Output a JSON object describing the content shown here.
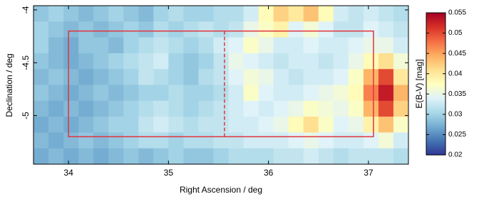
{
  "chart_data": {
    "type": "heatmap",
    "xlabel": "Right Ascension / deg",
    "ylabel": "Declination / deg",
    "colorbar_label": "E(B-V) [mag]",
    "xlim": [
      33.65,
      37.4
    ],
    "ylim": [
      -5.46,
      -3.96
    ],
    "xticks": [
      34,
      35,
      36,
      37
    ],
    "yticks": [
      -4,
      -4.5,
      -5
    ],
    "clim": [
      0.02,
      0.055
    ],
    "cticks": [
      0.02,
      0.025,
      0.03,
      0.035,
      0.04,
      0.045,
      0.05,
      0.055
    ],
    "colormap": [
      "#313695",
      "#4575b4",
      "#74add1",
      "#abd9e9",
      "#e0f3f8",
      "#ffffbf",
      "#fee090",
      "#fdae61",
      "#f46d43",
      "#d73027",
      "#a50026"
    ],
    "x": [
      33.725,
      33.875,
      34.025,
      34.175,
      34.325,
      34.475,
      34.625,
      34.775,
      34.925,
      35.075,
      35.225,
      35.375,
      35.525,
      35.675,
      35.825,
      35.975,
      36.125,
      36.275,
      36.425,
      36.575,
      36.725,
      36.875,
      37.025,
      37.175,
      37.325
    ],
    "y": [
      -4.035,
      -4.185,
      -4.335,
      -4.485,
      -4.635,
      -4.785,
      -4.935,
      -5.085,
      -5.235,
      -5.385
    ],
    "z": [
      [
        0.029,
        0.03,
        0.029,
        0.028,
        0.029,
        0.03,
        0.029,
        0.028,
        0.03,
        0.031,
        0.03,
        0.03,
        0.031,
        0.031,
        0.033,
        0.038,
        0.042,
        0.04,
        0.043,
        0.038,
        0.033,
        0.032,
        0.033,
        0.032,
        0.031
      ],
      [
        0.03,
        0.029,
        0.028,
        0.029,
        0.028,
        0.029,
        0.03,
        0.029,
        0.031,
        0.03,
        0.031,
        0.032,
        0.031,
        0.032,
        0.035,
        0.037,
        0.039,
        0.034,
        0.036,
        0.034,
        0.032,
        0.032,
        0.034,
        0.033,
        0.032
      ],
      [
        0.03,
        0.028,
        0.027,
        0.029,
        0.029,
        0.028,
        0.03,
        0.031,
        0.032,
        0.031,
        0.03,
        0.031,
        0.033,
        0.034,
        0.037,
        0.035,
        0.033,
        0.033,
        0.034,
        0.033,
        0.033,
        0.034,
        0.035,
        0.035,
        0.033
      ],
      [
        0.029,
        0.028,
        0.027,
        0.028,
        0.029,
        0.03,
        0.031,
        0.032,
        0.033,
        0.03,
        0.029,
        0.03,
        0.032,
        0.035,
        0.034,
        0.033,
        0.032,
        0.033,
        0.033,
        0.032,
        0.033,
        0.035,
        0.038,
        0.041,
        0.036
      ],
      [
        0.028,
        0.029,
        0.028,
        0.027,
        0.028,
        0.029,
        0.03,
        0.032,
        0.031,
        0.03,
        0.029,
        0.031,
        0.032,
        0.034,
        0.036,
        0.035,
        0.033,
        0.032,
        0.033,
        0.033,
        0.034,
        0.037,
        0.044,
        0.05,
        0.04
      ],
      [
        0.029,
        0.028,
        0.027,
        0.028,
        0.029,
        0.028,
        0.029,
        0.03,
        0.03,
        0.031,
        0.03,
        0.03,
        0.031,
        0.033,
        0.037,
        0.034,
        0.033,
        0.033,
        0.034,
        0.035,
        0.036,
        0.038,
        0.047,
        0.053,
        0.044
      ],
      [
        0.028,
        0.027,
        0.028,
        0.027,
        0.028,
        0.029,
        0.03,
        0.031,
        0.032,
        0.031,
        0.03,
        0.031,
        0.032,
        0.033,
        0.034,
        0.033,
        0.034,
        0.035,
        0.037,
        0.036,
        0.035,
        0.037,
        0.044,
        0.05,
        0.042
      ],
      [
        0.027,
        0.028,
        0.027,
        0.028,
        0.029,
        0.03,
        0.03,
        0.032,
        0.033,
        0.032,
        0.031,
        0.032,
        0.032,
        0.033,
        0.033,
        0.034,
        0.035,
        0.038,
        0.041,
        0.037,
        0.034,
        0.035,
        0.039,
        0.043,
        0.037
      ],
      [
        0.028,
        0.027,
        0.028,
        0.029,
        0.028,
        0.029,
        0.03,
        0.031,
        0.031,
        0.03,
        0.031,
        0.031,
        0.032,
        0.032,
        0.033,
        0.033,
        0.033,
        0.034,
        0.035,
        0.034,
        0.033,
        0.033,
        0.034,
        0.036,
        0.033
      ],
      [
        0.027,
        0.028,
        0.027,
        0.028,
        0.027,
        0.028,
        0.029,
        0.028,
        0.029,
        0.03,
        0.029,
        0.029,
        0.03,
        0.031,
        0.031,
        0.031,
        0.032,
        0.032,
        0.033,
        0.032,
        0.031,
        0.032,
        0.032,
        0.032,
        0.031
      ]
    ],
    "box": {
      "x": [
        34,
        37.05
      ],
      "y": [
        -5.2,
        -4.2
      ],
      "color": "#e3333b"
    },
    "divider_x": 35.56
  }
}
